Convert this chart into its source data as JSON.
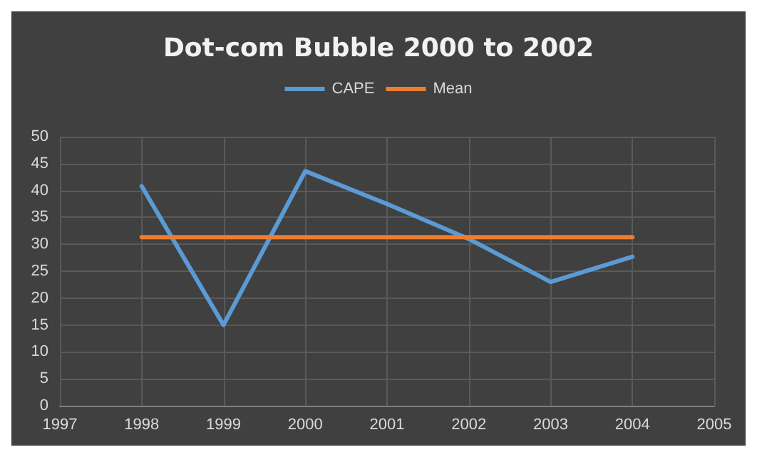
{
  "chart_data": {
    "type": "line",
    "title": "Dot-com Bubble 2000 to 2002",
    "x": [
      1998,
      1999,
      2000,
      2001,
      2002,
      2003,
      2004
    ],
    "series": [
      {
        "name": "CAPE",
        "color": "#5b9bd5",
        "values": [
          40.8,
          15,
          43.6,
          37.5,
          31,
          23,
          27.7
        ]
      },
      {
        "name": "Mean",
        "color": "#ed7d31",
        "values": [
          31.3,
          31.3,
          31.3,
          31.3,
          31.3,
          31.3,
          31.3
        ]
      }
    ],
    "xlim": [
      1997,
      2005
    ],
    "xticks": [
      1997,
      1998,
      1999,
      2000,
      2001,
      2002,
      2003,
      2004,
      2005
    ],
    "ylim": [
      0,
      50
    ],
    "yticks": [
      0,
      5,
      10,
      15,
      20,
      25,
      30,
      35,
      40,
      45,
      50
    ],
    "grid": true,
    "legend": "top",
    "marker": "none",
    "line_style": "solid"
  }
}
